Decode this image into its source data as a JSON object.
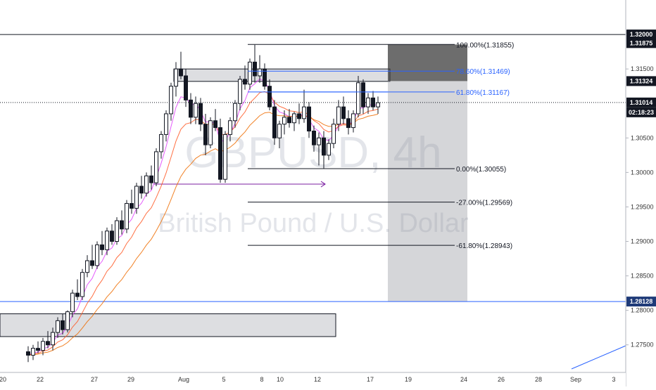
{
  "watermark": {
    "symbol": "GBPUSD, 4h",
    "name": "British Pound / U.S. Dollar"
  },
  "chart_data": {
    "type": "candlestick",
    "symbol": "GBPUSD",
    "timeframe": "4h",
    "ylim": [
      1.271,
      1.325
    ],
    "grid": false,
    "x_ticks": [
      "20",
      "22",
      "27",
      "29",
      "Aug",
      "5",
      "8",
      "10",
      "12",
      "17",
      "19",
      "24",
      "26",
      "28",
      "Sep",
      "3"
    ],
    "y_ticks": [
      "1.32000",
      "1.31875",
      "1.31500",
      "1.31324",
      "1.31014",
      "1.30500",
      "1.30000",
      "1.29500",
      "1.29000",
      "1.28500",
      "1.28128",
      "1.28000",
      "1.27500"
    ],
    "price_badges": [
      {
        "price": 1.32,
        "label": "1.32000",
        "color": "#131722"
      },
      {
        "price": 1.31875,
        "label": "1.31875",
        "color": "#131722"
      },
      {
        "price": 1.31324,
        "label": "1.31324",
        "color": "#131722"
      },
      {
        "price": 1.31014,
        "label": "1.31014",
        "color": "#131722"
      },
      {
        "price": 1.28128,
        "label": "1.28128",
        "color": "#1e3a78"
      }
    ],
    "countdown": "02:18:23",
    "fibonacci": [
      {
        "label": "100.00%(1.31855)",
        "price": 1.31855,
        "color": "#131722"
      },
      {
        "label": "78.60%(1.31469)",
        "price": 1.31469,
        "color": "#2962ff"
      },
      {
        "label": "61.80%(1.31167)",
        "price": 1.31167,
        "color": "#2962ff"
      },
      {
        "label": "0.00%(1.30055)",
        "price": 1.30055,
        "color": "#131722"
      },
      {
        "label": "-27.00%(1.29569)",
        "price": 1.29569,
        "color": "#131722"
      },
      {
        "label": "-61.80%(1.28943)",
        "price": 1.28943,
        "color": "#131722"
      }
    ],
    "horizontal_lines": [
      {
        "price": 1.32,
        "style": "solid",
        "color": "#131722"
      },
      {
        "price": 1.31014,
        "style": "dotted",
        "color": "#131722"
      },
      {
        "price": 1.28128,
        "style": "solid",
        "color": "#2962ff"
      }
    ],
    "zones": [
      {
        "name": "supply-zone",
        "from": 1.315,
        "to": 1.3132
      },
      {
        "name": "demand-zone",
        "from": 1.2795,
        "to": 1.2762
      }
    ],
    "projection": {
      "top": 1.31855,
      "mid": 1.31324,
      "bottom": 1.28128
    },
    "candles": [
      [
        1.274,
        1.2748,
        1.2725,
        1.2735
      ],
      [
        1.2735,
        1.275,
        1.2728,
        1.2745
      ],
      [
        1.2745,
        1.2755,
        1.2738,
        1.2742
      ],
      [
        1.2742,
        1.276,
        1.2735,
        1.2755
      ],
      [
        1.2755,
        1.277,
        1.2745,
        1.275
      ],
      [
        1.275,
        1.2775,
        1.2742,
        1.2768
      ],
      [
        1.2768,
        1.279,
        1.276,
        1.2785
      ],
      [
        1.2785,
        1.2795,
        1.2765,
        1.2772
      ],
      [
        1.2772,
        1.28,
        1.2768,
        1.2798
      ],
      [
        1.2798,
        1.283,
        1.279,
        1.2825
      ],
      [
        1.2825,
        1.2845,
        1.2815,
        1.282
      ],
      [
        1.282,
        1.286,
        1.2815,
        1.2855
      ],
      [
        1.2855,
        1.288,
        1.2848,
        1.2872
      ],
      [
        1.2872,
        1.2895,
        1.286,
        1.2865
      ],
      [
        1.2865,
        1.29,
        1.286,
        1.2895
      ],
      [
        1.2895,
        1.2915,
        1.288,
        1.2888
      ],
      [
        1.2888,
        1.292,
        1.288,
        1.2915
      ],
      [
        1.2915,
        1.2925,
        1.2895,
        1.29
      ],
      [
        1.29,
        1.2935,
        1.2895,
        1.293
      ],
      [
        1.293,
        1.2945,
        1.291,
        1.2918
      ],
      [
        1.2918,
        1.296,
        1.2912,
        1.2955
      ],
      [
        1.2955,
        1.2975,
        1.294,
        1.2948
      ],
      [
        1.2948,
        1.2985,
        1.294,
        1.298
      ],
      [
        1.298,
        1.2995,
        1.2962,
        1.297
      ],
      [
        1.297,
        1.3,
        1.2965,
        1.2995
      ],
      [
        1.2995,
        1.301,
        1.2975,
        1.2985
      ],
      [
        1.2985,
        1.3035,
        1.298,
        1.303
      ],
      [
        1.303,
        1.306,
        1.302,
        1.3055
      ],
      [
        1.3055,
        1.309,
        1.3045,
        1.3085
      ],
      [
        1.3085,
        1.313,
        1.3075,
        1.3125
      ],
      [
        1.3125,
        1.316,
        1.311,
        1.315
      ],
      [
        1.315,
        1.3175,
        1.3135,
        1.314
      ],
      [
        1.314,
        1.315,
        1.3095,
        1.3105
      ],
      [
        1.3105,
        1.3115,
        1.307,
        1.308
      ],
      [
        1.308,
        1.311,
        1.307,
        1.31
      ],
      [
        1.31,
        1.3108,
        1.306,
        1.307
      ],
      [
        1.307,
        1.3085,
        1.3025,
        1.304
      ],
      [
        1.304,
        1.308,
        1.3035,
        1.3075
      ],
      [
        1.3075,
        1.3092,
        1.306,
        1.3065
      ],
      [
        1.3065,
        1.3078,
        1.2985,
        1.299
      ],
      [
        1.299,
        1.306,
        1.2985,
        1.3055
      ],
      [
        1.3055,
        1.308,
        1.3045,
        1.3075
      ],
      [
        1.3075,
        1.3105,
        1.3065,
        1.31
      ],
      [
        1.31,
        1.314,
        1.309,
        1.3135
      ],
      [
        1.3135,
        1.3155,
        1.312,
        1.3128
      ],
      [
        1.3128,
        1.3165,
        1.312,
        1.316
      ],
      [
        1.316,
        1.3185,
        1.313,
        1.314
      ],
      [
        1.314,
        1.317,
        1.313,
        1.315
      ],
      [
        1.315,
        1.3158,
        1.312,
        1.3125
      ],
      [
        1.3125,
        1.3135,
        1.309,
        1.3095
      ],
      [
        1.3095,
        1.3105,
        1.304,
        1.305
      ],
      [
        1.305,
        1.3075,
        1.3035,
        1.307
      ],
      [
        1.307,
        1.309,
        1.3055,
        1.308
      ],
      [
        1.308,
        1.3092,
        1.3065,
        1.3072
      ],
      [
        1.3072,
        1.3088,
        1.306,
        1.3085
      ],
      [
        1.3085,
        1.31,
        1.307,
        1.3078
      ],
      [
        1.3078,
        1.312,
        1.3072,
        1.3095
      ],
      [
        1.3095,
        1.3102,
        1.305,
        1.306
      ],
      [
        1.306,
        1.3068,
        1.303,
        1.304
      ],
      [
        1.304,
        1.3058,
        1.301,
        1.305
      ],
      [
        1.305,
        1.306,
        1.3005,
        1.3025
      ],
      [
        1.3025,
        1.3048,
        1.3018,
        1.3042
      ],
      [
        1.3042,
        1.3078,
        1.3035,
        1.307
      ],
      [
        1.307,
        1.3105,
        1.306,
        1.3095
      ],
      [
        1.3095,
        1.311,
        1.307,
        1.3078
      ],
      [
        1.3078,
        1.309,
        1.3055,
        1.3065
      ],
      [
        1.3065,
        1.309,
        1.3058,
        1.3085
      ],
      [
        1.3085,
        1.314,
        1.308,
        1.313
      ],
      [
        1.313,
        1.3135,
        1.3085,
        1.3095
      ],
      [
        1.3095,
        1.3115,
        1.3085,
        1.3108
      ],
      [
        1.3108,
        1.3118,
        1.309,
        1.3095
      ],
      [
        1.3095,
        1.311,
        1.3085,
        1.3101
      ]
    ]
  }
}
